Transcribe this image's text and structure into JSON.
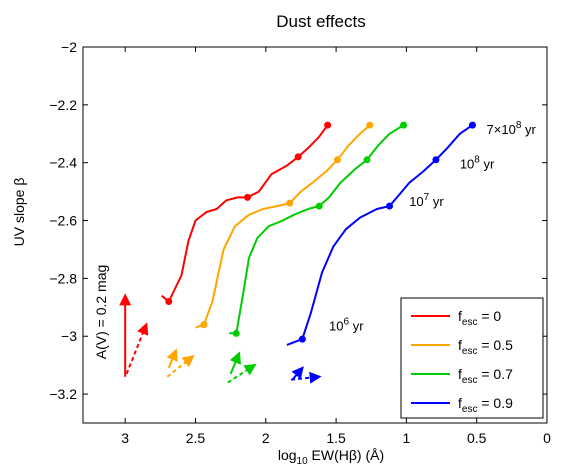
{
  "chart_data": {
    "type": "line",
    "title": "Dust effects",
    "xlabel": {
      "main": "log",
      "sub": "10",
      "rest": " EW(Hβ) (Å)"
    },
    "ylabel": "UV slope β",
    "xlim": [
      3.3,
      0
    ],
    "ylim": [
      -3.3,
      -2.0
    ],
    "xticks": [
      3,
      2.5,
      2,
      1.5,
      1,
      0.5,
      0
    ],
    "yticks": [
      -2,
      -2.2,
      -2.4,
      -2.6,
      -2.8,
      -3,
      -3.2
    ],
    "xtick_labels": [
      "3",
      "2.5",
      "2",
      "1.5",
      "1",
      "0.5",
      "0"
    ],
    "ytick_labels": [
      "−2",
      "−2.2",
      "−2.4",
      "−2.6",
      "−2.8",
      "−3",
      "−3.2"
    ],
    "grid": false,
    "legend_placement": "bottom-right",
    "series": [
      {
        "name_main": "f",
        "name_sub": "esc",
        "name_rest": " = 0",
        "color": "#ff0000",
        "points": [
          [
            2.74,
            -2.86
          ],
          [
            2.69,
            -2.88
          ],
          [
            2.6,
            -2.79
          ],
          [
            2.55,
            -2.67
          ],
          [
            2.5,
            -2.6
          ],
          [
            2.42,
            -2.57
          ],
          [
            2.35,
            -2.56
          ],
          [
            2.28,
            -2.53
          ],
          [
            2.2,
            -2.52
          ],
          [
            2.13,
            -2.52
          ],
          [
            2.05,
            -2.5
          ],
          [
            1.96,
            -2.44
          ],
          [
            1.85,
            -2.41
          ],
          [
            1.77,
            -2.38
          ],
          [
            1.7,
            -2.35
          ],
          [
            1.62,
            -2.31
          ],
          [
            1.56,
            -2.27
          ]
        ],
        "markers": [
          [
            2.69,
            -2.88
          ],
          [
            2.13,
            -2.52
          ],
          [
            1.77,
            -2.38
          ],
          [
            1.56,
            -2.27
          ]
        ],
        "dust_dashed": [
          [
            2.99,
            -3.13
          ],
          [
            2.85,
            -2.96
          ]
        ],
        "dust_arrow": {
          "x": 3.0,
          "y_from": -3.14,
          "y_to": -2.86
        }
      },
      {
        "name_main": "f",
        "name_sub": "esc",
        "name_rest": " = 0.5",
        "color": "#ffa500",
        "points": [
          [
            2.5,
            -2.97
          ],
          [
            2.44,
            -2.96
          ],
          [
            2.38,
            -2.88
          ],
          [
            2.3,
            -2.7
          ],
          [
            2.22,
            -2.62
          ],
          [
            2.12,
            -2.58
          ],
          [
            2.02,
            -2.56
          ],
          [
            1.92,
            -2.55
          ],
          [
            1.83,
            -2.54
          ],
          [
            1.75,
            -2.5
          ],
          [
            1.67,
            -2.47
          ],
          [
            1.57,
            -2.43
          ],
          [
            1.49,
            -2.39
          ],
          [
            1.41,
            -2.34
          ],
          [
            1.33,
            -2.3
          ],
          [
            1.26,
            -2.27
          ]
        ],
        "markers": [
          [
            2.44,
            -2.96
          ],
          [
            1.83,
            -2.54
          ],
          [
            1.49,
            -2.39
          ],
          [
            1.26,
            -2.27
          ]
        ],
        "dust_dashed": [
          [
            2.7,
            -3.14
          ],
          [
            2.52,
            -3.07
          ]
        ],
        "dust_solid": [
          [
            2.69,
            -3.11
          ],
          [
            2.64,
            -3.05
          ]
        ]
      },
      {
        "name_main": "f",
        "name_sub": "esc",
        "name_rest": " = 0.7",
        "color": "#00cc00",
        "points": [
          [
            2.26,
            -2.99
          ],
          [
            2.21,
            -2.99
          ],
          [
            2.16,
            -2.85
          ],
          [
            2.12,
            -2.73
          ],
          [
            2.06,
            -2.66
          ],
          [
            1.98,
            -2.62
          ],
          [
            1.88,
            -2.6
          ],
          [
            1.8,
            -2.58
          ],
          [
            1.7,
            -2.56
          ],
          [
            1.62,
            -2.55
          ],
          [
            1.55,
            -2.52
          ],
          [
            1.47,
            -2.47
          ],
          [
            1.36,
            -2.42
          ],
          [
            1.28,
            -2.39
          ],
          [
            1.2,
            -2.34
          ],
          [
            1.12,
            -2.3
          ],
          [
            1.02,
            -2.27
          ]
        ],
        "markers": [
          [
            2.21,
            -2.99
          ],
          [
            1.62,
            -2.55
          ],
          [
            1.28,
            -2.39
          ],
          [
            1.02,
            -2.27
          ]
        ],
        "dust_dashed": [
          [
            2.27,
            -3.16
          ],
          [
            2.08,
            -3.1
          ]
        ],
        "dust_solid": [
          [
            2.25,
            -3.13
          ],
          [
            2.19,
            -3.06
          ]
        ]
      },
      {
        "name_main": "f",
        "name_sub": "esc",
        "name_rest": " = 0.9",
        "color": "#0000ff",
        "points": [
          [
            1.85,
            -3.03
          ],
          [
            1.74,
            -3.01
          ],
          [
            1.68,
            -2.92
          ],
          [
            1.6,
            -2.78
          ],
          [
            1.52,
            -2.69
          ],
          [
            1.43,
            -2.63
          ],
          [
            1.33,
            -2.59
          ],
          [
            1.21,
            -2.56
          ],
          [
            1.12,
            -2.55
          ],
          [
            1.05,
            -2.51
          ],
          [
            0.98,
            -2.47
          ],
          [
            0.88,
            -2.43
          ],
          [
            0.79,
            -2.39
          ],
          [
            0.71,
            -2.35
          ],
          [
            0.62,
            -2.3
          ],
          [
            0.53,
            -2.27
          ]
        ],
        "markers": [
          [
            1.74,
            -3.01
          ],
          [
            1.12,
            -2.55
          ],
          [
            0.79,
            -2.39
          ],
          [
            0.53,
            -2.27
          ]
        ],
        "dust_dashed": [
          [
            1.82,
            -3.15
          ],
          [
            1.62,
            -3.14
          ]
        ],
        "dust_solid": [
          [
            1.81,
            -3.15
          ],
          [
            1.74,
            -3.11
          ]
        ]
      }
    ],
    "annotations": [
      {
        "main": "10",
        "sup": "6",
        "rest": " yr",
        "x": 1.55,
        "y": -2.98
      },
      {
        "main": "10",
        "sup": "7",
        "rest": " yr",
        "x": 0.98,
        "y": -2.55
      },
      {
        "main": "10",
        "sup": "8",
        "rest": " yr",
        "x": 0.62,
        "y": -2.42
      },
      {
        "main": "7×10",
        "sup": "8",
        "rest": " yr",
        "x": 0.43,
        "y": -2.3
      }
    ],
    "dust_label": "A(V) = 0.2 mag"
  }
}
